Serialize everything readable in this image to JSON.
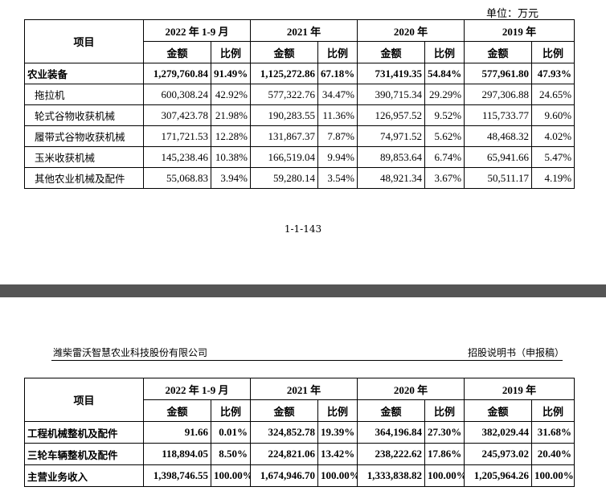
{
  "unit_label": "单位：万元",
  "page_number": "1-1-143",
  "doc_header": {
    "company": "潍柴雷沃智慧农业科技股份有限公司",
    "doc_type": "招股说明书（申报稿）"
  },
  "header": {
    "item": "项目",
    "periods": [
      "2022 年 1-9 月",
      "2021 年",
      "2020 年",
      "2019 年"
    ],
    "amount": "金额",
    "ratio": "比例"
  },
  "table_top_rows": [
    {
      "label": "农业装备",
      "bold": true,
      "indent": false,
      "cells": [
        "1,279,760.84",
        "91.49%",
        "1,125,272.86",
        "67.18%",
        "731,419.35",
        "54.84%",
        "577,961.80",
        "47.93%"
      ]
    },
    {
      "label": "拖拉机",
      "bold": false,
      "indent": true,
      "cells": [
        "600,308.24",
        "42.92%",
        "577,322.76",
        "34.47%",
        "390,715.34",
        "29.29%",
        "297,306.88",
        "24.65%"
      ]
    },
    {
      "label": "轮式谷物收获机械",
      "bold": false,
      "indent": true,
      "cells": [
        "307,423.78",
        "21.98%",
        "190,283.55",
        "11.36%",
        "126,957.52",
        "9.52%",
        "115,733.77",
        "9.60%"
      ]
    },
    {
      "label": "履带式谷物收获机械",
      "bold": false,
      "indent": true,
      "cells": [
        "171,721.53",
        "12.28%",
        "131,867.37",
        "7.87%",
        "74,971.52",
        "5.62%",
        "48,468.32",
        "4.02%"
      ]
    },
    {
      "label": "玉米收获机械",
      "bold": false,
      "indent": true,
      "cells": [
        "145,238.46",
        "10.38%",
        "166,519.04",
        "9.94%",
        "89,853.64",
        "6.74%",
        "65,941.66",
        "5.47%"
      ]
    },
    {
      "label": "其他农业机械及配件",
      "bold": false,
      "indent": true,
      "cells": [
        "55,068.83",
        "3.94%",
        "59,280.14",
        "3.54%",
        "48,921.34",
        "3.67%",
        "50,511.17",
        "4.19%"
      ]
    }
  ],
  "table_bottom_rows": [
    {
      "label": "工程机械整机及配件",
      "bold": true,
      "indent": false,
      "cells": [
        "91.66",
        "0.01%",
        "324,852.78",
        "19.39%",
        "364,196.84",
        "27.30%",
        "382,029.44",
        "31.68%"
      ]
    },
    {
      "label": "三轮车辆整机及配件",
      "bold": true,
      "indent": false,
      "cells": [
        "118,894.05",
        "8.50%",
        "224,821.06",
        "13.42%",
        "238,222.62",
        "17.86%",
        "245,973.02",
        "20.40%"
      ]
    },
    {
      "label": "主营业务收入",
      "bold": true,
      "indent": false,
      "cells": [
        "1,398,746.55",
        "100.00%",
        "1,674,946.70",
        "100.00%",
        "1,333,838.82",
        "100.00%",
        "1,205,964.26",
        "100.00%"
      ]
    }
  ]
}
